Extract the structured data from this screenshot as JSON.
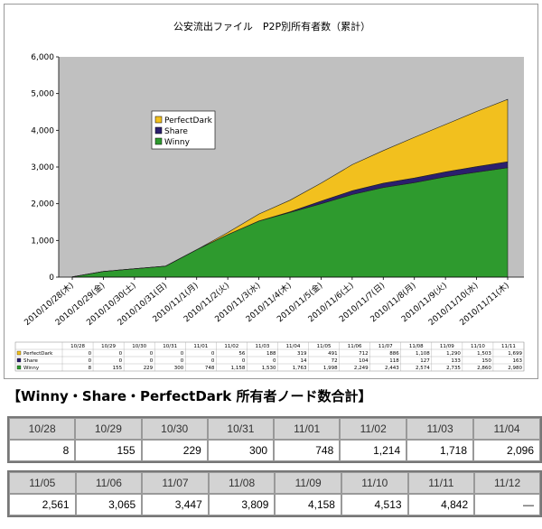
{
  "chart_data": {
    "type": "area",
    "stacked": true,
    "title": "公安流出ファイル　P2P別所有者数（累計）",
    "categories": [
      "2010/10/28(木)",
      "2010/10/29(金)",
      "2010/10/30(土)",
      "2010/10/31(日)",
      "2010/11/1(月)",
      "2010/11/2(火)",
      "2010/11/3(水)",
      "2010/11/4(木)",
      "2010/11/5(金)",
      "2010/11/6(土)",
      "2010/11/7(日)",
      "2010/11/8(月)",
      "2010/11/9(火)",
      "2010/11/10(水)",
      "2010/11/11(木)"
    ],
    "short_categories": [
      "10/28",
      "10/29",
      "10/30",
      "10/31",
      "11/01",
      "11/02",
      "11/03",
      "11/04",
      "11/05",
      "11/06",
      "11/07",
      "11/08",
      "11/09",
      "11/10",
      "11/11"
    ],
    "series": [
      {
        "name": "Winny",
        "color": "#2e9a2e",
        "values": [
          8,
          155,
          229,
          300,
          748,
          1158,
          1530,
          1763,
          1998,
          2249,
          2443,
          2574,
          2735,
          2860,
          2980
        ]
      },
      {
        "name": "Share",
        "color": "#2b1f6e",
        "values": [
          0,
          0,
          0,
          0,
          0,
          0,
          0,
          14,
          72,
          104,
          118,
          127,
          133,
          150,
          163
        ]
      },
      {
        "name": "PerfectDark",
        "color": "#f2c01e",
        "values": [
          0,
          0,
          0,
          0,
          0,
          56,
          188,
          319,
          491,
          712,
          886,
          1108,
          1290,
          1503,
          1699
        ]
      }
    ],
    "table_values": {
      "PerfectDark": [
        "0",
        "0",
        "0",
        "0",
        "0",
        "56",
        "188",
        "319",
        "491",
        "712",
        "886",
        "1,108",
        "1,290",
        "1,503",
        "1,699"
      ],
      "Share": [
        "0",
        "0",
        "0",
        "0",
        "0",
        "0",
        "0",
        "14",
        "72",
        "104",
        "118",
        "127",
        "133",
        "150",
        "163"
      ],
      "Winny": [
        "8",
        "155",
        "229",
        "300",
        "748",
        "1,158",
        "1,530",
        "1,763",
        "1,998",
        "2,249",
        "2,443",
        "2,574",
        "2,735",
        "2,860",
        "2,980"
      ]
    },
    "ylim": [
      0,
      6000
    ],
    "yticks": [
      "0",
      "1,000",
      "2,000",
      "3,000",
      "4,000",
      "5,000",
      "6,000"
    ],
    "ytick_values": [
      0,
      1000,
      2000,
      3000,
      4000,
      5000,
      6000
    ],
    "legend_order": [
      "PerfectDark",
      "Share",
      "Winny"
    ],
    "legend_placement": "center-left",
    "grid": false,
    "plot_background": "#c0c0c0"
  },
  "summary": {
    "title": "【Winny・Share・PerfectDark 所有者ノード数合計】",
    "row1_headers": [
      "10/28",
      "10/29",
      "10/30",
      "10/31",
      "11/01",
      "11/02",
      "11/03",
      "11/04"
    ],
    "row1_values": [
      "8",
      "155",
      "229",
      "300",
      "748",
      "1,214",
      "1,718",
      "2,096"
    ],
    "row2_headers": [
      "11/05",
      "11/06",
      "11/07",
      "11/08",
      "11/09",
      "11/10",
      "11/11",
      "11/12"
    ],
    "row2_values": [
      "2,561",
      "3,065",
      "3,447",
      "3,809",
      "4,158",
      "4,513",
      "4,842",
      "—"
    ]
  }
}
